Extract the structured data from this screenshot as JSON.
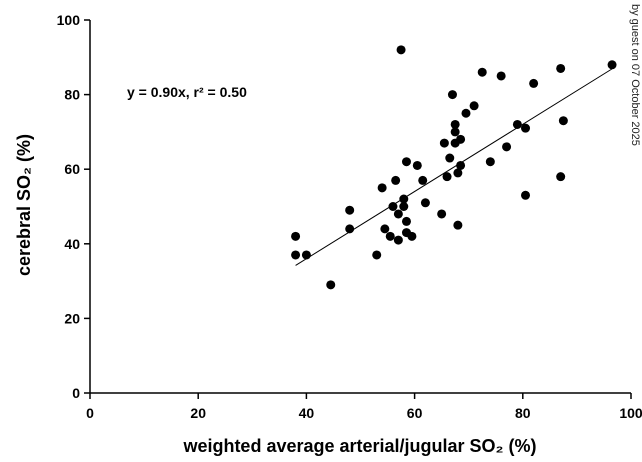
{
  "chart_data": {
    "type": "scatter",
    "x_label": "weighted average arterial/jugular SO₂ (%)",
    "y_label": "cerebral SO₂ (%)",
    "annotation": "y = 0.90x,  r² = 0.50",
    "side_note": "by guest on 07 October 2025",
    "xlim": [
      0,
      100
    ],
    "ylim": [
      0,
      100
    ],
    "xticks": [
      0,
      20,
      40,
      60,
      80,
      100
    ],
    "yticks": [
      0,
      20,
      40,
      60,
      80,
      100
    ],
    "color": "#000000",
    "x": [
      38,
      38,
      40,
      44.5,
      48,
      48,
      53,
      54,
      54.5,
      55.5,
      56,
      56.5,
      57,
      57,
      57.5,
      58,
      58,
      58.5,
      58.5,
      58.5,
      59.5,
      60.5,
      61.5,
      62,
      65,
      65.5,
      66,
      66.5,
      67,
      67.5,
      67.5,
      67.5,
      68,
      68,
      68.5,
      68.5,
      69.5,
      71,
      72.5,
      74,
      76,
      77,
      79,
      80.5,
      80.5,
      82,
      87,
      87,
      87.5,
      96.5
    ],
    "values": [
      42,
      37,
      37,
      29,
      49,
      44,
      37,
      55,
      44,
      42,
      50,
      57,
      48,
      41,
      92,
      50,
      52,
      62,
      46,
      43,
      42,
      61,
      57,
      51,
      48,
      67,
      58,
      63,
      80,
      67,
      72,
      70,
      45,
      59,
      68,
      61,
      75,
      77,
      86,
      62,
      85,
      66,
      72,
      71,
      53,
      83,
      87,
      58,
      73,
      88
    ],
    "fit_line": {
      "x": [
        38,
        96.5
      ],
      "y": [
        34.2,
        86.9
      ]
    }
  }
}
